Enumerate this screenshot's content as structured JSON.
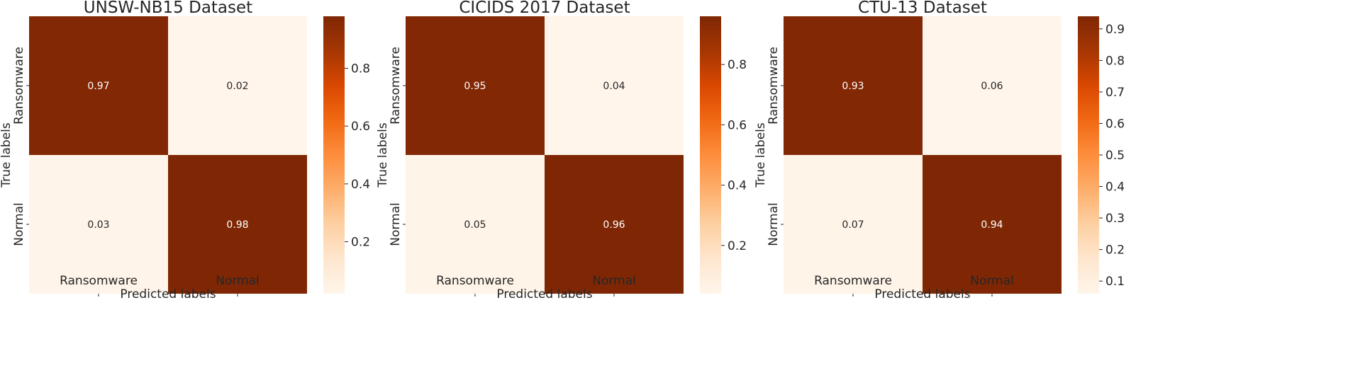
{
  "figure": {
    "xlabel": "Predicted labels",
    "ylabel": "True labels",
    "class_labels": [
      "Ransomware",
      "Normal"
    ],
    "colormap": "Oranges",
    "colormap_stops": [
      "#fff5eb",
      "#fee6ce",
      "#fdd0a2",
      "#fdae6b",
      "#fd8d3c",
      "#f16913",
      "#d94801",
      "#a63603",
      "#7f2704"
    ]
  },
  "chart_data": [
    {
      "type": "heatmap",
      "title": "UNSW-NB15 Dataset",
      "xlabel": "Predicted labels",
      "ylabel": "True labels",
      "x_categories": [
        "Ransomware",
        "Normal"
      ],
      "y_categories": [
        "Ransomware",
        "Normal"
      ],
      "matrix": [
        [
          0.97,
          0.02
        ],
        [
          0.03,
          0.98
        ]
      ],
      "colorbar": {
        "min": 0.02,
        "max": 0.98,
        "ticks": [
          0.2,
          0.4,
          0.6,
          0.8
        ],
        "tick_labels": [
          "0.2",
          "0.4",
          "0.6",
          "0.8"
        ]
      }
    },
    {
      "type": "heatmap",
      "title": "CICIDS 2017 Dataset",
      "xlabel": "Predicted labels",
      "ylabel": "True labels",
      "x_categories": [
        "Ransomware",
        "Normal"
      ],
      "y_categories": [
        "Ransomware",
        "Normal"
      ],
      "matrix": [
        [
          0.95,
          0.04
        ],
        [
          0.05,
          0.96
        ]
      ],
      "colorbar": {
        "min": 0.04,
        "max": 0.96,
        "ticks": [
          0.2,
          0.4,
          0.6,
          0.8
        ],
        "tick_labels": [
          "0.2",
          "0.4",
          "0.6",
          "0.8"
        ]
      }
    },
    {
      "type": "heatmap",
      "title": "CTU-13 Dataset",
      "xlabel": "Predicted labels",
      "ylabel": "True labels",
      "x_categories": [
        "Ransomware",
        "Normal"
      ],
      "y_categories": [
        "Ransomware",
        "Normal"
      ],
      "matrix": [
        [
          0.93,
          0.06
        ],
        [
          0.07,
          0.94
        ]
      ],
      "colorbar": {
        "min": 0.06,
        "max": 0.94,
        "ticks": [
          0.1,
          0.2,
          0.3,
          0.4,
          0.5,
          0.6,
          0.7,
          0.8,
          0.9
        ],
        "tick_labels": [
          "0.1",
          "0.2",
          "0.3",
          "0.4",
          "0.5",
          "0.6",
          "0.7",
          "0.8",
          "0.9"
        ]
      }
    }
  ]
}
